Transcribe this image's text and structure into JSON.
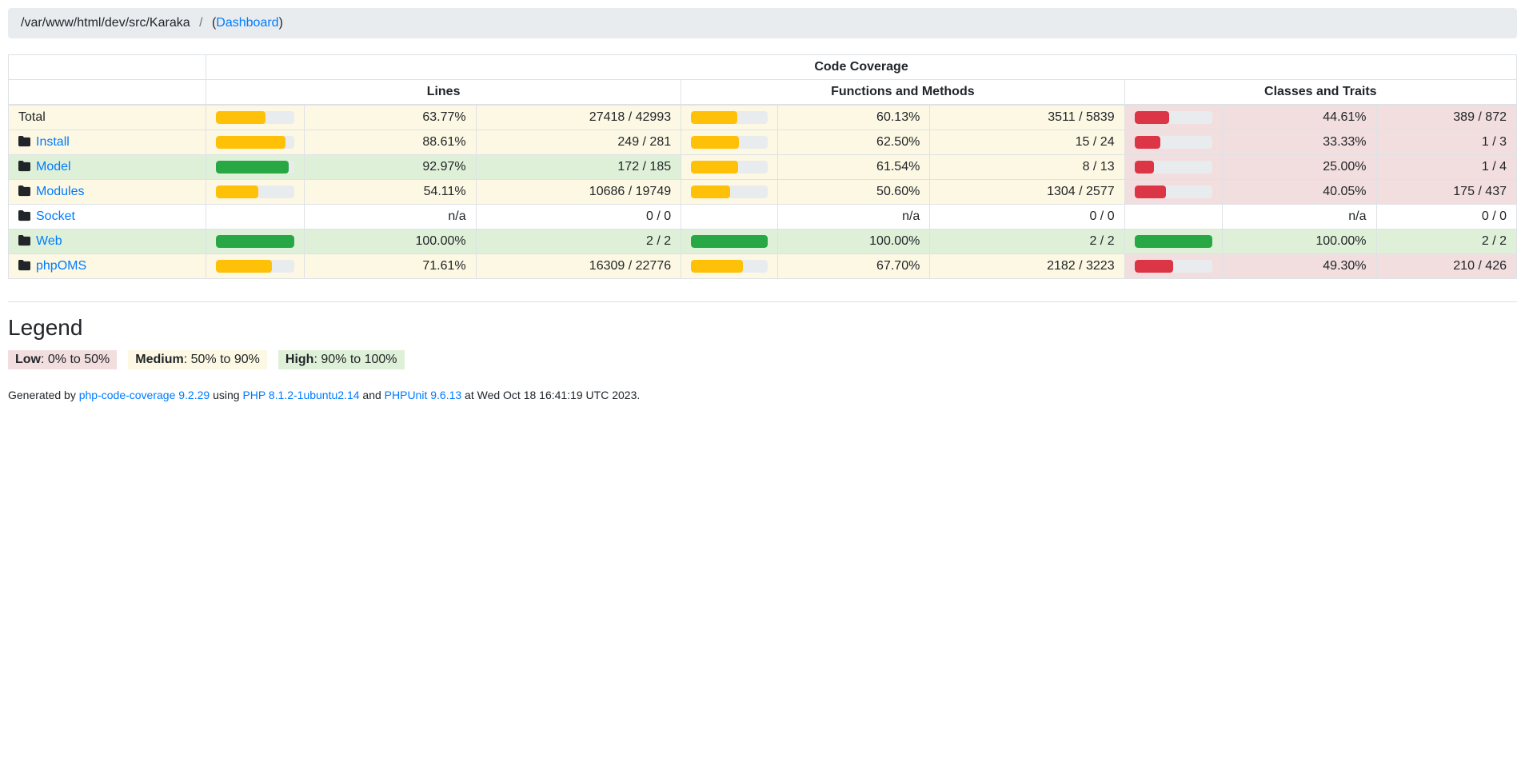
{
  "breadcrumb": {
    "path": "/var/www/html/dev/src/Karaka",
    "separator": "/",
    "paren_open": "(",
    "link_label": "Dashboard",
    "paren_close": ")"
  },
  "table": {
    "title": "Code Coverage",
    "groups": [
      "Lines",
      "Functions and Methods",
      "Classes and Traits"
    ],
    "rows": [
      {
        "name": "Total",
        "is_link": false,
        "icon": null,
        "name_level": "warning",
        "lines": {
          "pct": "63.77%",
          "ratio": "27418 / 42993",
          "value": 63.77,
          "level": "warning"
        },
        "functions": {
          "pct": "60.13%",
          "ratio": "3511 / 5839",
          "value": 60.13,
          "level": "warning"
        },
        "classes": {
          "pct": "44.61%",
          "ratio": "389 / 872",
          "value": 44.61,
          "level": "danger"
        }
      },
      {
        "name": "Install",
        "is_link": true,
        "icon": "folder-icon",
        "name_level": "warning",
        "lines": {
          "pct": "88.61%",
          "ratio": "249 / 281",
          "value": 88.61,
          "level": "warning"
        },
        "functions": {
          "pct": "62.50%",
          "ratio": "15 / 24",
          "value": 62.5,
          "level": "warning"
        },
        "classes": {
          "pct": "33.33%",
          "ratio": "1 / 3",
          "value": 33.33,
          "level": "danger"
        }
      },
      {
        "name": "Model",
        "is_link": true,
        "icon": "folder-icon",
        "name_level": "success",
        "lines": {
          "pct": "92.97%",
          "ratio": "172 / 185",
          "value": 92.97,
          "level": "success"
        },
        "functions": {
          "pct": "61.54%",
          "ratio": "8 / 13",
          "value": 61.54,
          "level": "warning"
        },
        "classes": {
          "pct": "25.00%",
          "ratio": "1 / 4",
          "value": 25.0,
          "level": "danger"
        }
      },
      {
        "name": "Modules",
        "is_link": true,
        "icon": "folder-icon",
        "name_level": "warning",
        "lines": {
          "pct": "54.11%",
          "ratio": "10686 / 19749",
          "value": 54.11,
          "level": "warning"
        },
        "functions": {
          "pct": "50.60%",
          "ratio": "1304 / 2577",
          "value": 50.6,
          "level": "warning"
        },
        "classes": {
          "pct": "40.05%",
          "ratio": "175 / 437",
          "value": 40.05,
          "level": "danger"
        }
      },
      {
        "name": "Socket",
        "is_link": true,
        "icon": "folder-icon",
        "name_level": "none",
        "lines": {
          "pct": "n/a",
          "ratio": "0 / 0",
          "value": null,
          "level": "none"
        },
        "functions": {
          "pct": "n/a",
          "ratio": "0 / 0",
          "value": null,
          "level": "none"
        },
        "classes": {
          "pct": "n/a",
          "ratio": "0 / 0",
          "value": null,
          "level": "none"
        }
      },
      {
        "name": "Web",
        "is_link": true,
        "icon": "folder-icon",
        "name_level": "success",
        "lines": {
          "pct": "100.00%",
          "ratio": "2 / 2",
          "value": 100.0,
          "level": "success"
        },
        "functions": {
          "pct": "100.00%",
          "ratio": "2 / 2",
          "value": 100.0,
          "level": "success"
        },
        "classes": {
          "pct": "100.00%",
          "ratio": "2 / 2",
          "value": 100.0,
          "level": "success"
        }
      },
      {
        "name": "phpOMS",
        "is_link": true,
        "icon": "folder-icon",
        "name_level": "warning",
        "lines": {
          "pct": "71.61%",
          "ratio": "16309 / 22776",
          "value": 71.61,
          "level": "warning"
        },
        "functions": {
          "pct": "67.70%",
          "ratio": "2182 / 3223",
          "value": 67.7,
          "level": "warning"
        },
        "classes": {
          "pct": "49.30%",
          "ratio": "210 / 426",
          "value": 49.3,
          "level": "danger"
        }
      }
    ]
  },
  "levels": {
    "warning": {
      "bar": "#ffc107",
      "cell_bg": "#fcf8e3"
    },
    "success": {
      "bar": "#28a745",
      "cell_bg": "#dff0d8"
    },
    "danger": {
      "bar": "#dc3545",
      "cell_bg": "#f2dede"
    },
    "none": {
      "bar": "",
      "cell_bg": "#ffffff"
    }
  },
  "track_color": "#e9ecef",
  "legend": {
    "heading": "Legend",
    "items": [
      {
        "label": "Low",
        "range": ": 0% to 50%",
        "level": "danger"
      },
      {
        "label": "Medium",
        "range": ": 50% to 90%",
        "level": "warning"
      },
      {
        "label": "High",
        "range": ": 90% to 100%",
        "level": "success"
      }
    ]
  },
  "footer": {
    "prefix": "Generated by ",
    "tool_link": "php-code-coverage 9.2.29",
    "using": " using ",
    "php_link": "PHP 8.1.2-1ubuntu2.14",
    "and": " and ",
    "phpunit_link": "PHPUnit 9.6.13",
    "suffix": " at Wed Oct 18 16:41:19 UTC 2023."
  }
}
